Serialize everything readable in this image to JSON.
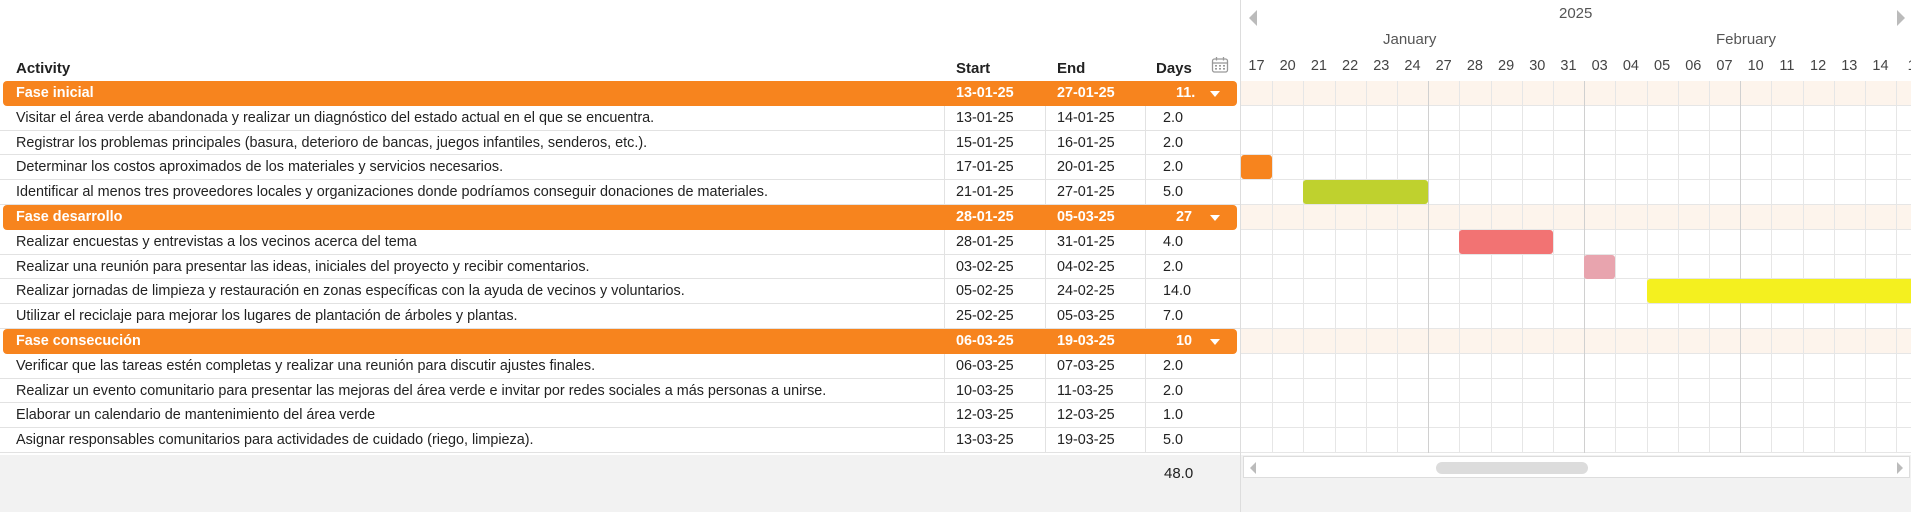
{
  "columns": {
    "activity": "Activity",
    "start": "Start",
    "end": "End",
    "days": "Days"
  },
  "icons": {
    "calendar": "calendar-icon",
    "collapse": "caret-down-icon"
  },
  "rows": [
    {
      "type": "phase",
      "activity": "Fase inicial",
      "start": "13-01-25",
      "end": "27-01-25",
      "days": "11."
    },
    {
      "type": "task",
      "activity": "Visitar el área verde abandonada y realizar un diagnóstico del estado actual en el que se encuentra.",
      "start": "13-01-25",
      "end": "14-01-25",
      "days": "2.0"
    },
    {
      "type": "task",
      "activity": "Registrar los problemas principales (basura, deterioro de bancas, juegos infantiles, senderos, etc.).",
      "start": "15-01-25",
      "end": "16-01-25",
      "days": "2.0"
    },
    {
      "type": "task",
      "activity": "Determinar los costos aproximados de los materiales y servicios necesarios.",
      "start": "17-01-25",
      "end": "20-01-25",
      "days": "2.0"
    },
    {
      "type": "task",
      "activity": "Identificar al menos tres proveedores locales y organizaciones donde podríamos conseguir donaciones de materiales.",
      "start": "21-01-25",
      "end": "27-01-25",
      "days": "5.0"
    },
    {
      "type": "phase",
      "activity": "Fase  desarrollo",
      "start": "28-01-25",
      "end": "05-03-25",
      "days": "27"
    },
    {
      "type": "task",
      "activity": "Realizar encuestas y entrevistas a los vecinos acerca del tema",
      "start": "28-01-25",
      "end": "31-01-25",
      "days": "4.0"
    },
    {
      "type": "task",
      "activity": "Realizar una reunión para presentar las ideas, iniciales del proyecto y recibir comentarios.",
      "start": "03-02-25",
      "end": "04-02-25",
      "days": "2.0"
    },
    {
      "type": "task",
      "activity": "Realizar jornadas de limpieza y restauración en zonas específicas con la ayuda de vecinos y voluntarios.",
      "start": "05-02-25",
      "end": "24-02-25",
      "days": "14.0"
    },
    {
      "type": "task",
      "activity": "Utilizar el reciclaje para mejorar los lugares de plantación de árboles y plantas.",
      "start": "25-02-25",
      "end": "05-03-25",
      "days": "7.0"
    },
    {
      "type": "phase",
      "activity": "Fase consecución",
      "start": "06-03-25",
      "end": "19-03-25",
      "days": "10"
    },
    {
      "type": "task",
      "activity": "Verificar que las tareas estén completas y realizar una reunión para discutir ajustes finales.",
      "start": "06-03-25",
      "end": "07-03-25",
      "days": "2.0"
    },
    {
      "type": "task",
      "activity": "Realizar un evento comunitario para presentar las mejoras del área verde e invitar por redes sociales a más personas a unirse.",
      "start": "10-03-25",
      "end": "11-03-25",
      "days": "2.0"
    },
    {
      "type": "task",
      "activity": "Elaborar un calendario de mantenimiento del área verde",
      "start": "12-03-25",
      "end": "12-03-25",
      "days": "1.0"
    },
    {
      "type": "task",
      "activity": "Asignar responsables comunitarios para actividades de cuidado (riego, limpieza).",
      "start": "13-03-25",
      "end": "19-03-25",
      "days": "5.0"
    }
  ],
  "total_days": "48.0",
  "timeline": {
    "year": "2025",
    "months": [
      "January",
      "February"
    ],
    "days": [
      "17",
      "20",
      "21",
      "22",
      "23",
      "24",
      "27",
      "28",
      "29",
      "30",
      "31",
      "03",
      "04",
      "05",
      "06",
      "07",
      "10",
      "11",
      "12",
      "13",
      "14",
      "1"
    ],
    "bars": [
      {
        "row": 3,
        "from_day": "17",
        "to_day": "20",
        "color": "#f7841e"
      },
      {
        "row": 4,
        "from_day": "21",
        "to_day": "27",
        "color": "#bfd12e"
      },
      {
        "row": 6,
        "from_day": "28",
        "to_day": "31",
        "color": "#f27373"
      },
      {
        "row": 7,
        "from_day": "03",
        "to_day": "04",
        "color": "#e8a4ae"
      },
      {
        "row": 8,
        "from_day": "05",
        "to_day": "end",
        "color": "#f4f01f"
      }
    ]
  }
}
